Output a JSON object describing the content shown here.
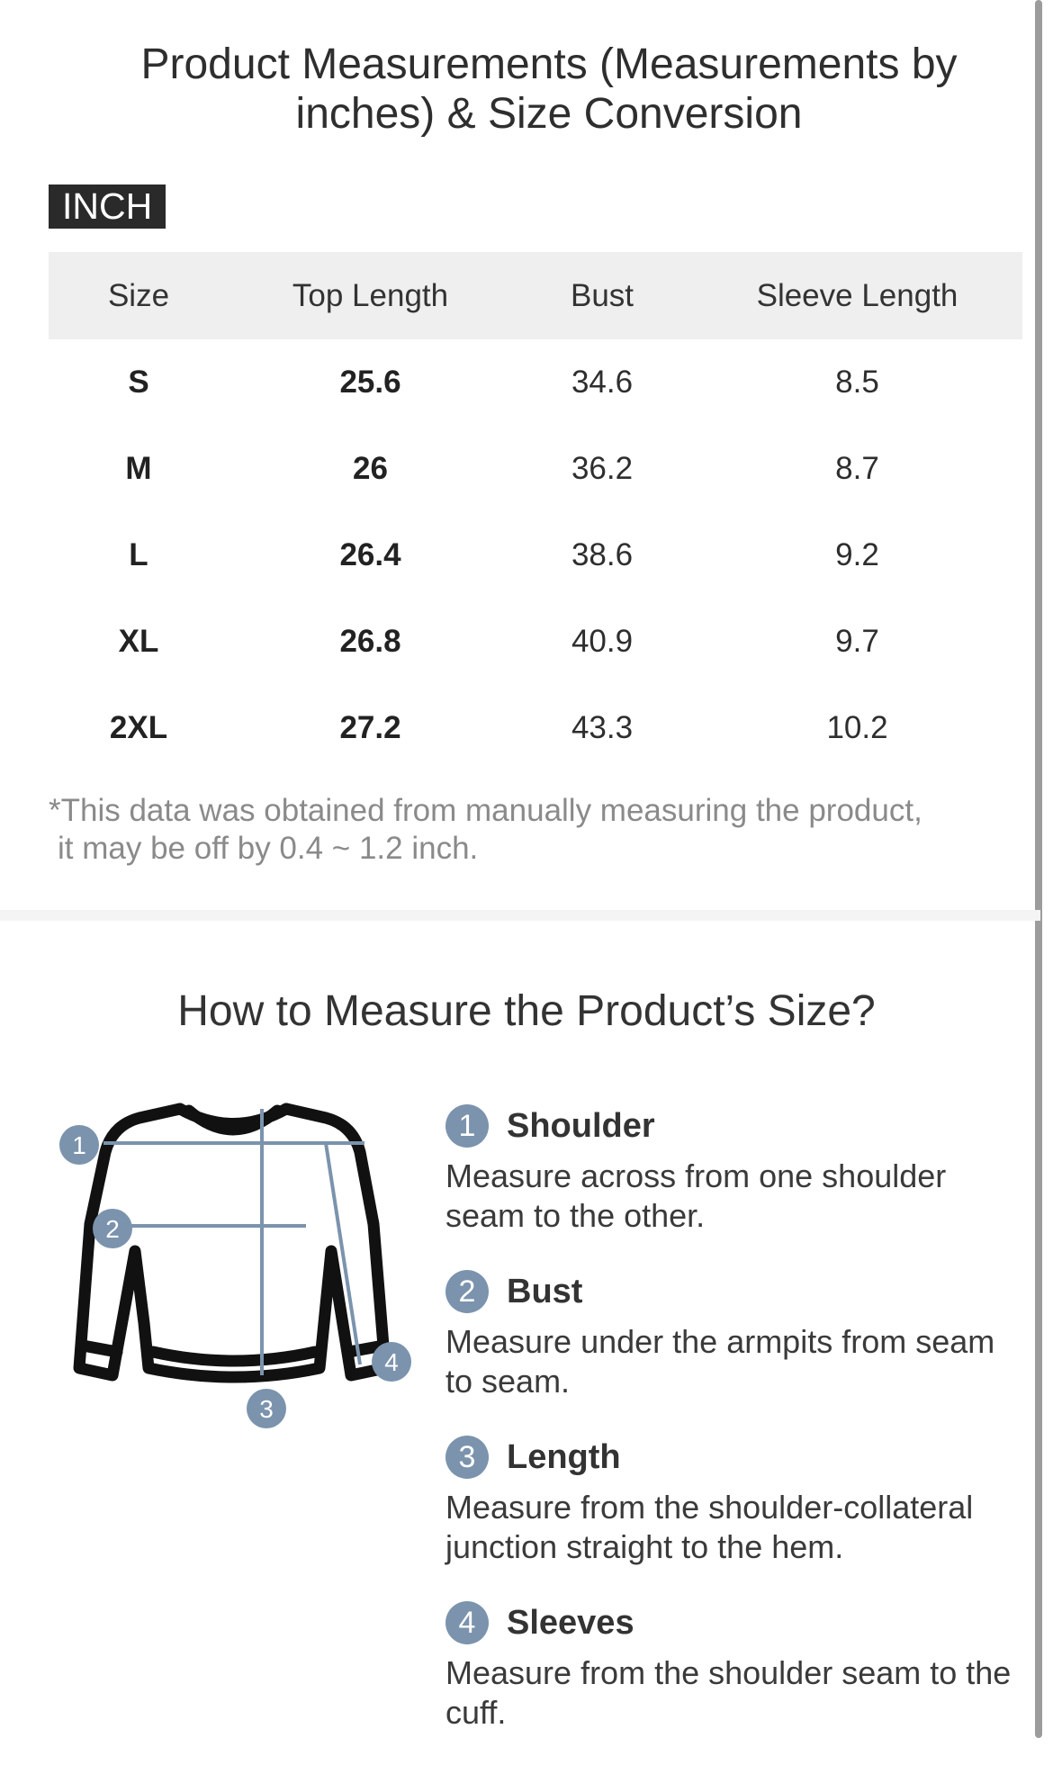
{
  "title": "Product Measurements (Measurements by inches) & Size Conversion",
  "unit_label": "INCH",
  "table": {
    "headers": [
      "Size",
      "Top Length",
      "Bust",
      "Sleeve Length"
    ],
    "rows": [
      [
        "S",
        "25.6",
        "34.6",
        "8.5"
      ],
      [
        "M",
        "26",
        "36.2",
        "8.7"
      ],
      [
        "L",
        "26.4",
        "38.6",
        "9.2"
      ],
      [
        "XL",
        "26.8",
        "40.9",
        "9.7"
      ],
      [
        "2XL",
        "27.2",
        "43.3",
        "10.2"
      ]
    ]
  },
  "note": {
    "line1": "*This data was obtained from manually measuring the product,",
    "line2": "it may be off by 0.4 ~ 1.2 inch."
  },
  "how_to": {
    "title": "How to Measure the Product’s Size?",
    "diagram_markers": [
      "1",
      "2",
      "3",
      "4"
    ],
    "steps": [
      {
        "num": "1",
        "title": "Shoulder",
        "desc": "Measure across from one shoulder seam to the other."
      },
      {
        "num": "2",
        "title": "Bust",
        "desc": "Measure under the armpits from seam to seam."
      },
      {
        "num": "3",
        "title": "Length",
        "desc": "Measure from the shoulder-collateral junction straight to the hem."
      },
      {
        "num": "4",
        "title": "Sleeves",
        "desc": "Measure from the shoulder seam to the cuff."
      }
    ]
  },
  "colors": {
    "marker": "#7b93ad",
    "header_bg": "#efefef",
    "tag_bg": "#2a2a2a",
    "note_text": "#8a8a8a"
  }
}
